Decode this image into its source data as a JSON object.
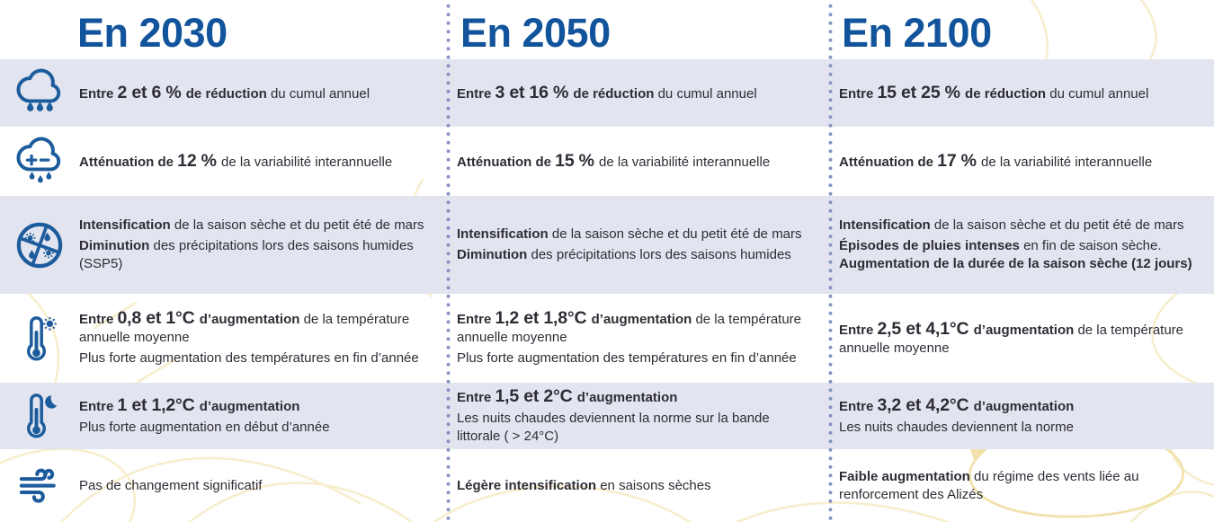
{
  "colors": {
    "header_blue": "#11549b",
    "icon_blue": "#1d5c9c",
    "band_lavender": "#e2e4ef",
    "text_dark": "#2e2d36",
    "separator_dot": "#8391c1",
    "decor_yellow": "#f7eecd"
  },
  "columns": [
    {
      "label": "En 2030"
    },
    {
      "label": "En 2050"
    },
    {
      "label": "En 2100"
    }
  ],
  "rows": [
    {
      "theme": "precipitation-annuelle",
      "icon": "rain-cloud-icon",
      "shaded": true,
      "cells": [
        [
          [
            [
              "Entre ",
              "b"
            ],
            [
              "2 et 6 % ",
              "bl"
            ],
            [
              "de réduction ",
              "b"
            ],
            [
              "du cumul annuel",
              "n"
            ]
          ]
        ],
        [
          [
            [
              "Entre ",
              "b"
            ],
            [
              "3 et 16 % ",
              "bl"
            ],
            [
              "de réduction ",
              "b"
            ],
            [
              "du cumul annuel",
              "n"
            ]
          ]
        ],
        [
          [
            [
              "Entre ",
              "b"
            ],
            [
              "15 et 25 % ",
              "bl"
            ],
            [
              "de réduction ",
              "b"
            ],
            [
              "du cumul annuel",
              "n"
            ]
          ]
        ]
      ]
    },
    {
      "theme": "variabilite-interannuelle",
      "icon": "cloud-plus-minus-icon",
      "shaded": false,
      "cells": [
        [
          [
            [
              "Atténuation de ",
              "b"
            ],
            [
              "12 % ",
              "bl"
            ],
            [
              "de la variabilité interannuelle",
              "n"
            ]
          ]
        ],
        [
          [
            [
              "Atténuation de ",
              "b"
            ],
            [
              "15 % ",
              "bl"
            ],
            [
              "de la variabilité interannuelle",
              "n"
            ]
          ]
        ],
        [
          [
            [
              "Atténuation de ",
              "b"
            ],
            [
              "17 % ",
              "bl"
            ],
            [
              "de la variabilité interannuelle",
              "n"
            ]
          ]
        ]
      ]
    },
    {
      "theme": "saisons",
      "icon": "seasons-cycle-icon",
      "shaded": true,
      "cells": [
        [
          [
            [
              "Intensification",
              "b"
            ],
            [
              " de la saison sèche et du petit été de mars",
              "n"
            ]
          ],
          [
            [
              "Diminution",
              "b"
            ],
            [
              " des précipitations lors des saisons humides (SSP5)",
              "n"
            ]
          ]
        ],
        [
          [
            [
              "Intensification",
              "b"
            ],
            [
              " de la saison sèche et du petit été de mars",
              "n"
            ]
          ],
          [
            [
              "Diminution",
              "b"
            ],
            [
              " des précipitations lors des saisons humides",
              "n"
            ]
          ]
        ],
        [
          [
            [
              "Intensification",
              "b"
            ],
            [
              " de la saison sèche et du petit été de mars",
              "n"
            ]
          ],
          [
            [
              "Épisodes de pluies intenses",
              "b"
            ],
            [
              " en fin de saison sèche. ",
              "n"
            ],
            [
              "Augmentation de la durée de la saison sèche (12 jours)",
              "b"
            ]
          ]
        ]
      ]
    },
    {
      "theme": "temperature-jour",
      "icon": "thermometer-day-icon",
      "shaded": false,
      "cells": [
        [
          [
            [
              "Entre ",
              "b"
            ],
            [
              "0,8 et 1°C ",
              "bl"
            ],
            [
              "d’augmentation ",
              "b"
            ],
            [
              "de la température annuelle moyenne",
              "n"
            ]
          ],
          [
            [
              "Plus forte augmentation des températures en fin d’année",
              "n"
            ]
          ]
        ],
        [
          [
            [
              "Entre ",
              "b"
            ],
            [
              "1,2 et 1,8°C ",
              "bl"
            ],
            [
              "d’augmentation ",
              "b"
            ],
            [
              "de la température annuelle moyenne",
              "n"
            ]
          ],
          [
            [
              "Plus forte augmentation des températures en fin d’année",
              "n"
            ]
          ]
        ],
        [
          [
            [
              "Entre ",
              "b"
            ],
            [
              "2,5 et 4,1°C ",
              "bl"
            ],
            [
              "d’augmentation ",
              "b"
            ],
            [
              "de la température annuelle moyenne",
              "n"
            ]
          ]
        ]
      ]
    },
    {
      "theme": "temperature-nuit",
      "icon": "thermometer-night-icon",
      "shaded": true,
      "cells": [
        [
          [
            [
              "Entre ",
              "b"
            ],
            [
              "1 et 1,2°C ",
              "bl"
            ],
            [
              "d’augmentation",
              "b"
            ]
          ],
          [
            [
              "Plus forte augmentation en début d’année",
              "n"
            ]
          ]
        ],
        [
          [
            [
              "Entre ",
              "b"
            ],
            [
              "1,5 et 2°C ",
              "bl"
            ],
            [
              "d’augmentation",
              "b"
            ]
          ],
          [
            [
              "Les nuits chaudes deviennent la norme sur la bande littorale ( > 24°C)",
              "n"
            ]
          ]
        ],
        [
          [
            [
              "Entre ",
              "b"
            ],
            [
              "3,2 et 4,2°C ",
              "bl"
            ],
            [
              "d’augmentation",
              "b"
            ]
          ],
          [
            [
              "Les nuits chaudes deviennent la norme",
              "n"
            ]
          ]
        ]
      ]
    },
    {
      "theme": "vents",
      "icon": "wind-icon",
      "shaded": false,
      "cells": [
        [
          [
            [
              "Pas de changement significatif",
              "n"
            ]
          ]
        ],
        [
          [
            [
              "Légère intensification",
              "b"
            ],
            [
              " en saisons sèches",
              "n"
            ]
          ]
        ],
        [
          [
            [
              "Faible augmentation",
              "b"
            ],
            [
              " du régime des vents liée au renforcement des Alizés",
              "n"
            ]
          ]
        ]
      ]
    }
  ]
}
